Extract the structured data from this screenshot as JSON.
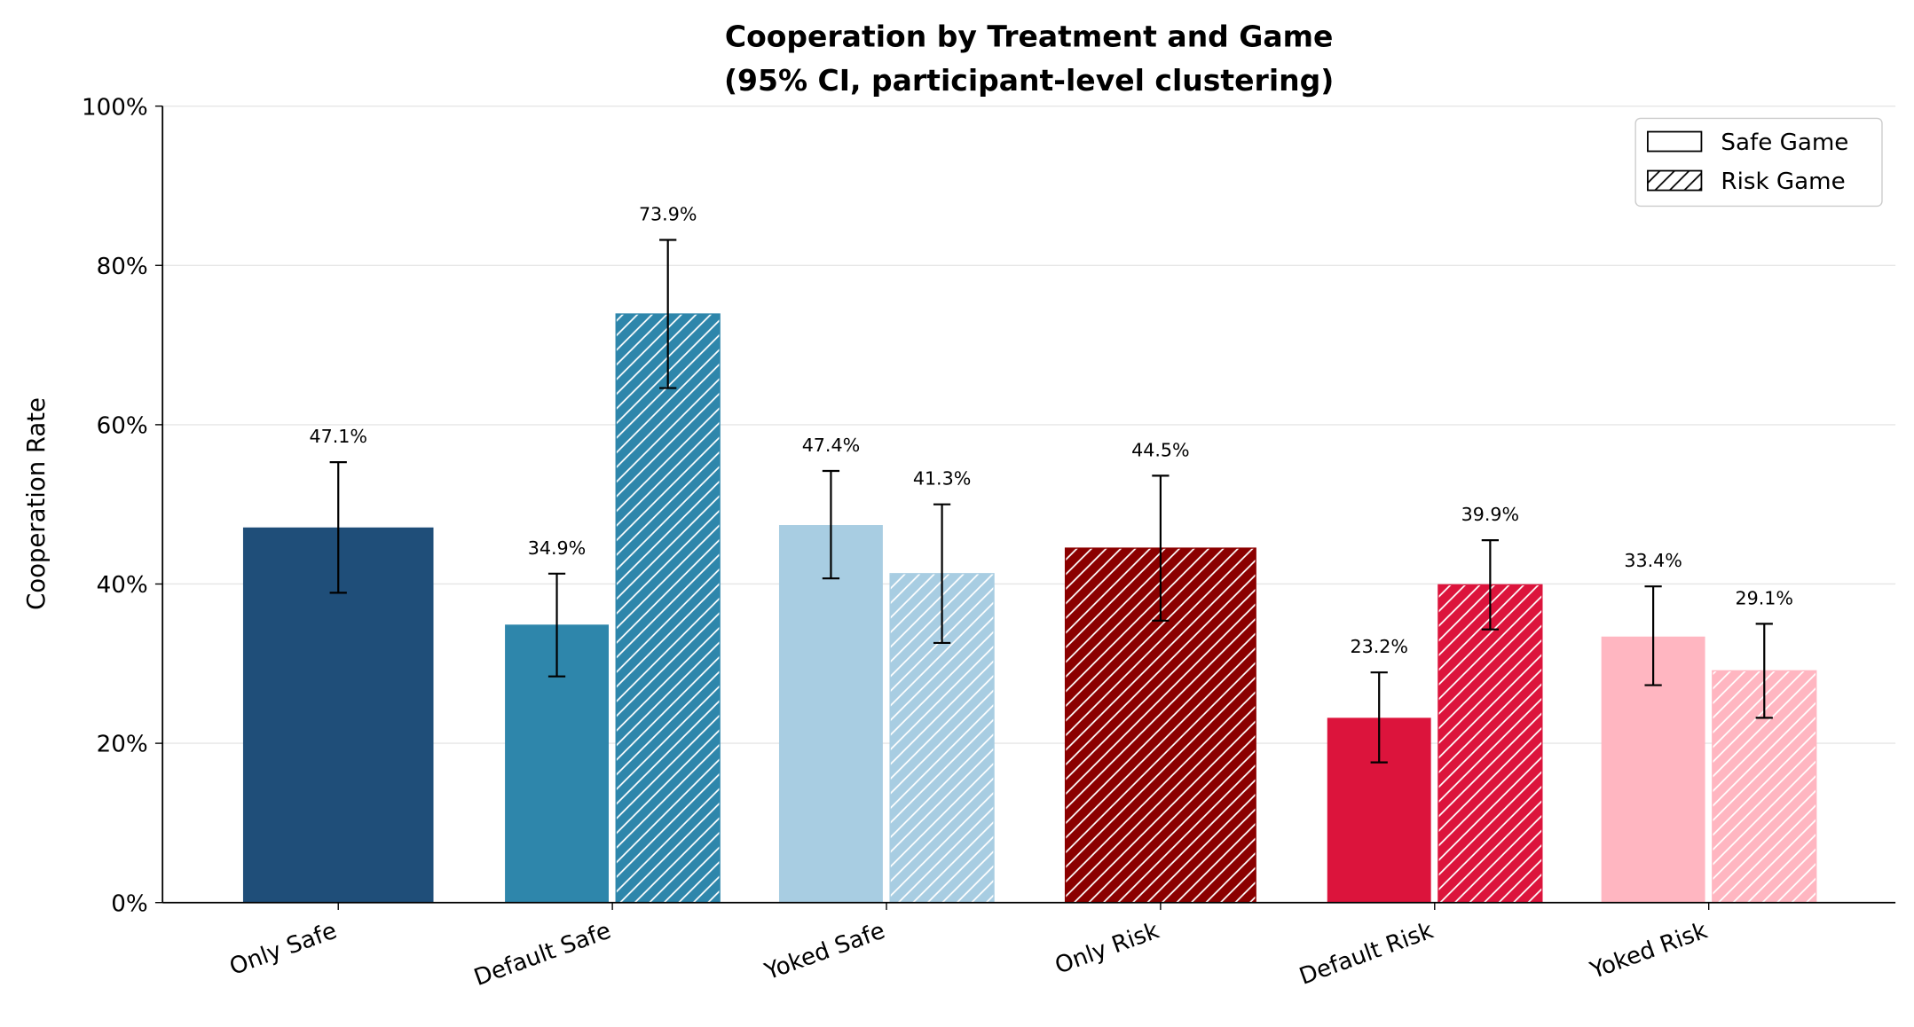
{
  "chart_data": {
    "type": "bar",
    "title": [
      "Cooperation by Treatment and Game",
      "(95% CI, participant-level clustering)"
    ],
    "y_label": "Cooperation Rate",
    "categories": [
      "Only Safe",
      "Default Safe",
      "Yoked Safe",
      "Only Risk",
      "Default Risk",
      "Yoked Risk"
    ],
    "colors": [
      "#1f4e79",
      "#2e86ab",
      "#a8cde2",
      "#8b0000",
      "#dc143c",
      "#ffb6c1"
    ],
    "series": [
      {
        "name": "Safe Game",
        "hatch": false,
        "values": [
          47.1,
          34.9,
          47.4,
          null,
          23.2,
          33.4
        ],
        "value_labels": [
          "47.1%",
          "34.9%",
          "47.4%",
          null,
          "23.2%",
          "33.4%"
        ],
        "ci_low": [
          38.9,
          28.4,
          40.7,
          null,
          17.6,
          27.3
        ],
        "ci_high": [
          55.3,
          41.3,
          54.2,
          null,
          28.9,
          39.7
        ]
      },
      {
        "name": "Risk Game",
        "hatch": true,
        "values": [
          null,
          73.9,
          41.3,
          44.5,
          39.9,
          29.1
        ],
        "value_labels": [
          null,
          "73.9%",
          "41.3%",
          "44.5%",
          "39.9%",
          "29.1%"
        ],
        "ci_low": [
          null,
          64.6,
          32.6,
          35.4,
          34.3,
          23.2
        ],
        "ci_high": [
          null,
          83.2,
          50.0,
          53.6,
          45.5,
          35.0
        ]
      }
    ],
    "ylim": [
      0,
      100
    ],
    "yticks": [
      {
        "value": 0,
        "label": "0%"
      },
      {
        "value": 20,
        "label": "20%"
      },
      {
        "value": 40,
        "label": "40%"
      },
      {
        "value": 60,
        "label": "60%"
      },
      {
        "value": 80,
        "label": "80%"
      },
      {
        "value": 100,
        "label": "100%"
      }
    ],
    "grid": true,
    "legend": "upper right"
  }
}
